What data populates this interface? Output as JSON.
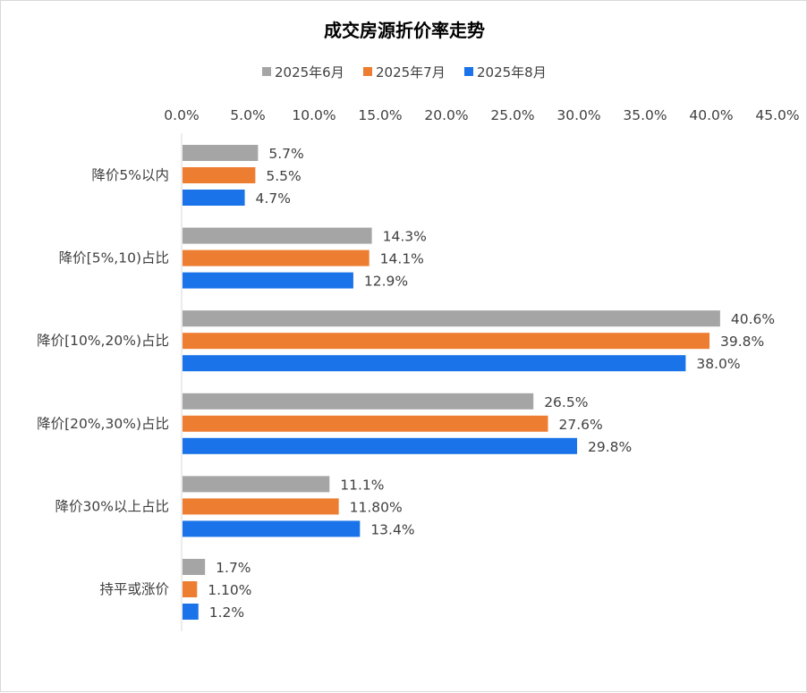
{
  "chart_data": {
    "type": "bar",
    "orientation": "horizontal",
    "title": "成交房源折价率走势",
    "categories": [
      "降价5%以内",
      "降价[5%,10)占比",
      "降价[10%,20%)占比",
      "降价[20%,30%)占比",
      "降价30%以上占比",
      "持平或涨价"
    ],
    "series": [
      {
        "name": "2025年6月",
        "color": "#a5a5a5",
        "values": [
          5.7,
          14.3,
          40.6,
          26.5,
          11.1,
          1.7
        ],
        "labels": [
          "5.7%",
          "14.3%",
          "40.6%",
          "26.5%",
          "11.1%",
          "1.7%"
        ]
      },
      {
        "name": "2025年7月",
        "color": "#ed7d31",
        "values": [
          5.5,
          14.1,
          39.8,
          27.6,
          11.8,
          1.1
        ],
        "labels": [
          "5.5%",
          "14.1%",
          "39.8%",
          "27.6%",
          "11.80%",
          "1.10%"
        ]
      },
      {
        "name": "2025年8月",
        "color": "#1a73e8",
        "values": [
          4.7,
          12.9,
          38.0,
          29.8,
          13.4,
          1.2
        ],
        "labels": [
          "4.7%",
          "12.9%",
          "38.0%",
          "29.8%",
          "13.4%",
          "1.2%"
        ]
      }
    ],
    "xlim": [
      0,
      45
    ],
    "x_ticks": [
      "0.0%",
      "5.0%",
      "10.0%",
      "15.0%",
      "20.0%",
      "25.0%",
      "30.0%",
      "35.0%",
      "40.0%",
      "45.0%"
    ],
    "x_axis_position": "top",
    "legend_position": "top",
    "grid": false
  }
}
